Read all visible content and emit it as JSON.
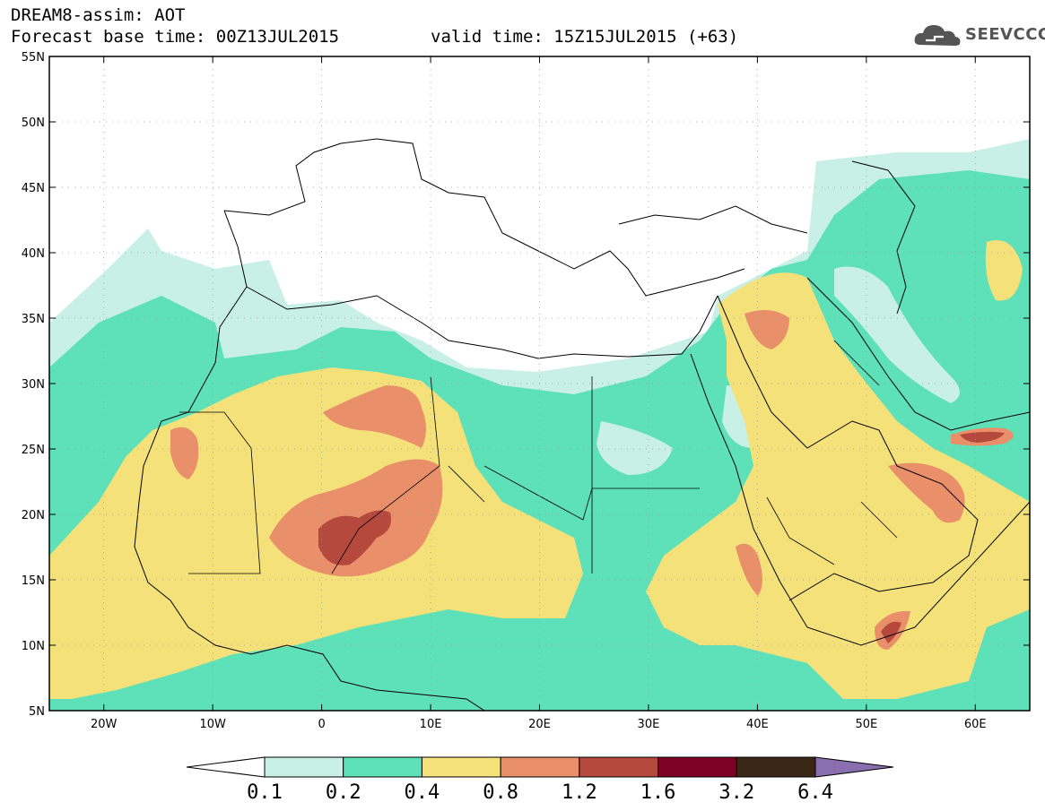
{
  "header": {
    "line1": "DREAM8-assim: AOT",
    "line2": "Forecast base time: 00Z13JUL2015",
    "line3": "valid time: 15Z15JUL2015 (+63)"
  },
  "logo": {
    "text": "SEEVCCC",
    "icon": "cloud-icon"
  },
  "map": {
    "lat_labels": [
      "55N",
      "50N",
      "45N",
      "40N",
      "35N",
      "30N",
      "25N",
      "20N",
      "15N",
      "10N",
      "5N"
    ],
    "lon_labels": [
      "20W",
      "10W",
      "0",
      "10E",
      "20E",
      "30E",
      "40E",
      "50E",
      "60E"
    ],
    "lat_range": [
      5,
      55
    ],
    "lon_range": [
      -25,
      65
    ],
    "grid": true
  },
  "colorbar": {
    "labels": [
      "0.1",
      "0.2",
      "0.4",
      "0.8",
      "1.2",
      "1.6",
      "3.2",
      "6.4"
    ],
    "colors": [
      "#ffffff",
      "#c8f0e6",
      "#5ee0b9",
      "#f5e17a",
      "#e9906b",
      "#b5493d",
      "#7d0025",
      "#3b2716",
      "#8a6fb0"
    ]
  }
}
